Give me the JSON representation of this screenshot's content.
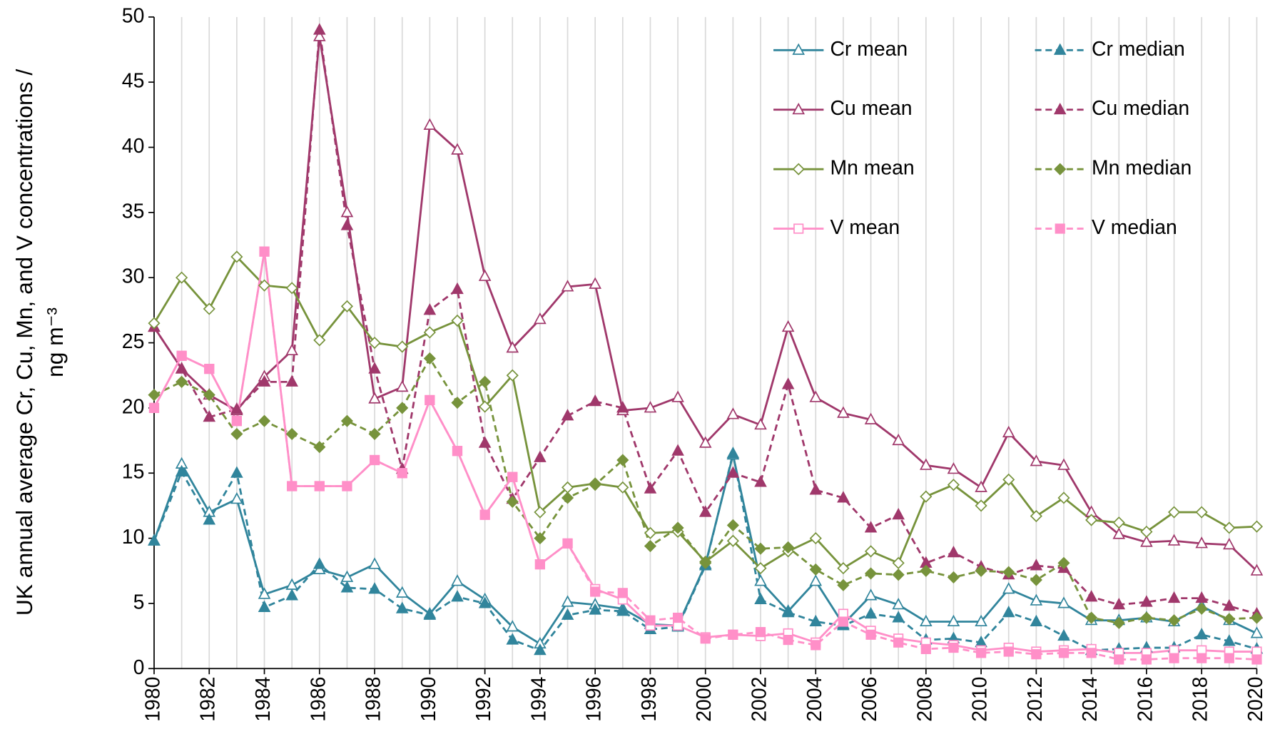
{
  "chart_data": {
    "type": "line",
    "y_label": [
      "UK annual average Cr, Cu, Mn, and V concentrations /",
      "ng m⁻³"
    ],
    "x": [
      1980,
      1981,
      1982,
      1983,
      1984,
      1985,
      1986,
      1987,
      1988,
      1989,
      1990,
      1991,
      1992,
      1993,
      1994,
      1995,
      1996,
      1997,
      1998,
      1999,
      2000,
      2001,
      2002,
      2003,
      2004,
      2005,
      2006,
      2007,
      2008,
      2009,
      2010,
      2011,
      2012,
      2013,
      2014,
      2015,
      2016,
      2017,
      2018,
      2019,
      2020
    ],
    "xlim": [
      1980,
      2020
    ],
    "xticks": [
      1980,
      1982,
      1984,
      1986,
      1988,
      1990,
      1992,
      1994,
      1996,
      1998,
      2000,
      2002,
      2004,
      2006,
      2008,
      2010,
      2012,
      2014,
      2016,
      2018,
      2020
    ],
    "ylim": [
      0,
      50
    ],
    "yticks": [
      0,
      5,
      10,
      15,
      20,
      25,
      30,
      35,
      40,
      45,
      50
    ],
    "x_grid": true,
    "series": [
      {
        "name": "Cr mean",
        "color": "#31859c",
        "dash": false,
        "marker": "triangle",
        "filled": false,
        "values": [
          9.8,
          15.7,
          12,
          13,
          5.7,
          6.4,
          7.6,
          7,
          8,
          5.8,
          4.2,
          6.7,
          5.3,
          3.2,
          1.9,
          5.1,
          4.9,
          4.6,
          3.4,
          3.3,
          8,
          16.4,
          6.7,
          4.4,
          6.7,
          3.4,
          5.6,
          4.9,
          3.6,
          3.6,
          3.6,
          6.1,
          5.2,
          5,
          3.7,
          3.7,
          3.9,
          3.6,
          4.8,
          3.7,
          2.7
        ]
      },
      {
        "name": "Cr median",
        "color": "#31859c",
        "dash": true,
        "marker": "triangle",
        "filled": true,
        "values": [
          9.8,
          15.1,
          11.4,
          15,
          4.7,
          5.6,
          8,
          6.2,
          6.1,
          4.6,
          4.1,
          5.5,
          5,
          2.2,
          1.4,
          4.1,
          4.5,
          4.4,
          3,
          3.2,
          7.9,
          16.5,
          5.3,
          4.3,
          3.6,
          3.3,
          4.2,
          3.9,
          2.2,
          2.3,
          2,
          4.3,
          3.6,
          2.5,
          1.4,
          1.5,
          1.6,
          1.6,
          2.6,
          2.1,
          1.5
        ]
      },
      {
        "name": "Cu mean",
        "color": "#a0386b",
        "dash": false,
        "marker": "triangle",
        "filled": false,
        "values": [
          26.2,
          23,
          21,
          19.8,
          22.4,
          24.4,
          48.5,
          35,
          20.7,
          21.6,
          41.7,
          39.8,
          30.1,
          24.6,
          26.8,
          29.3,
          29.5,
          19.8,
          20,
          20.8,
          17.3,
          19.5,
          18.7,
          26.2,
          20.8,
          19.6,
          19.1,
          17.5,
          15.6,
          15.3,
          13.9,
          18.1,
          15.9,
          15.6,
          12,
          10.3,
          9.7,
          9.8,
          9.6,
          9.5,
          7.5
        ]
      },
      {
        "name": "Cu median",
        "color": "#a0386b",
        "dash": true,
        "marker": "triangle",
        "filled": true,
        "values": [
          26.2,
          23,
          19.3,
          19.9,
          22,
          22,
          49,
          34,
          23,
          15.3,
          27.5,
          29.1,
          17.3,
          13,
          16.2,
          19.4,
          20.5,
          20,
          13.8,
          16.7,
          12,
          15,
          14.3,
          21.8,
          13.7,
          13.1,
          10.8,
          11.8,
          8.1,
          8.9,
          7.8,
          7.2,
          7.9,
          7.7,
          5.5,
          4.9,
          5.1,
          5.4,
          5.4,
          4.8,
          4.2
        ]
      },
      {
        "name": "Mn mean",
        "color": "#77933c",
        "dash": false,
        "marker": "diamond",
        "filled": false,
        "values": [
          26.5,
          30,
          27.6,
          31.6,
          29.4,
          29.2,
          25.2,
          27.8,
          25,
          24.7,
          25.8,
          26.7,
          20.1,
          22.5,
          12,
          13.9,
          14.2,
          13.9,
          10.4,
          10.5,
          8.2,
          9.8,
          7.7,
          9,
          10,
          7.7,
          9,
          8.1,
          13.2,
          14.1,
          12.5,
          14.5,
          11.7,
          13.1,
          11.4,
          11.2,
          10.5,
          12,
          12,
          10.8,
          10.9
        ]
      },
      {
        "name": "Mn median",
        "color": "#77933c",
        "dash": true,
        "marker": "diamond",
        "filled": true,
        "values": [
          21,
          22,
          21,
          18,
          19,
          18,
          17,
          19,
          18,
          20,
          23.8,
          20.4,
          22,
          12.8,
          10,
          13.1,
          14.1,
          16,
          9.4,
          10.8,
          8.1,
          11,
          9.2,
          9.3,
          7.6,
          6.4,
          7.3,
          7.2,
          7.5,
          7,
          7.5,
          7.4,
          6.8,
          8.1,
          3.9,
          3.5,
          3.9,
          3.7,
          4.6,
          3.8,
          3.9
        ]
      },
      {
        "name": "V mean",
        "color": "#ff8fc8",
        "dash": false,
        "marker": "square",
        "filled": false,
        "values": [
          20,
          24,
          23,
          19,
          32,
          14,
          14,
          14,
          16,
          15,
          20.6,
          16.7,
          11.8,
          14.7,
          8,
          9.6,
          6.1,
          5.3,
          3.3,
          3.3,
          2.4,
          2.6,
          2.5,
          2.7,
          2,
          4.2,
          2.9,
          2.3,
          2,
          1.8,
          1.4,
          1.6,
          1.3,
          1.4,
          1.5,
          1.2,
          1.2,
          1.4,
          1.4,
          1.3,
          1.3
        ]
      },
      {
        "name": "V median",
        "color": "#ff8fc8",
        "dash": true,
        "marker": "square",
        "filled": true,
        "values": [
          20,
          24,
          23,
          19,
          32,
          14,
          14,
          14,
          16,
          15,
          20.6,
          16.7,
          11.8,
          14.7,
          8,
          9.6,
          5.9,
          5.8,
          3.7,
          3.9,
          2.3,
          2.6,
          2.8,
          2.2,
          1.8,
          3.6,
          2.6,
          2,
          1.5,
          1.6,
          1.2,
          1.3,
          1.1,
          1.2,
          1.2,
          0.7,
          0.7,
          0.8,
          0.8,
          0.8,
          0.7
        ]
      }
    ]
  }
}
